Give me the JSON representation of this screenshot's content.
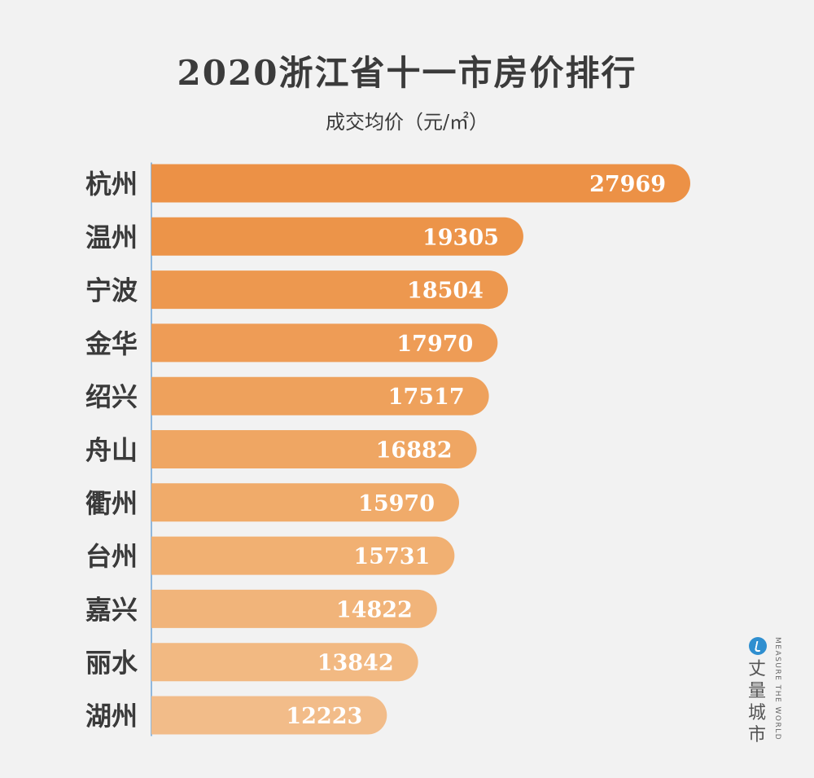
{
  "chart_data": {
    "type": "bar",
    "orientation": "horizontal",
    "title": "2020浙江省十一市房价排行",
    "subtitle": "成交均价（元/㎡）",
    "categories": [
      "杭州",
      "温州",
      "宁波",
      "金华",
      "绍兴",
      "舟山",
      "衢州",
      "台州",
      "嘉兴",
      "丽水",
      "湖州"
    ],
    "values": [
      27969,
      19305,
      18504,
      17970,
      17517,
      16882,
      15970,
      15731,
      14822,
      13842,
      12223
    ],
    "data_labels": [
      "27969",
      "19305",
      "18504",
      "17970",
      "17517",
      "16882",
      "15970",
      "15731",
      "14822",
      "13842",
      "12223"
    ],
    "bar_colors": [
      "#ec9146",
      "#ec9449",
      "#ed984f",
      "#ee9c56",
      "#eea15c",
      "#efa663",
      "#f0ab6a",
      "#f1b072",
      "#f1b47a",
      "#f2b982",
      "#f2bc89"
    ],
    "label_color": "#ffffff",
    "category_label_color": "#3a3a3a",
    "axis_line_color": "#8fb8de",
    "grid": false,
    "legend": "none"
  },
  "brand": {
    "name": "丈量城市",
    "tagline": "MEASURE THE WORLD",
    "logo_color": "#2f8fd0"
  }
}
